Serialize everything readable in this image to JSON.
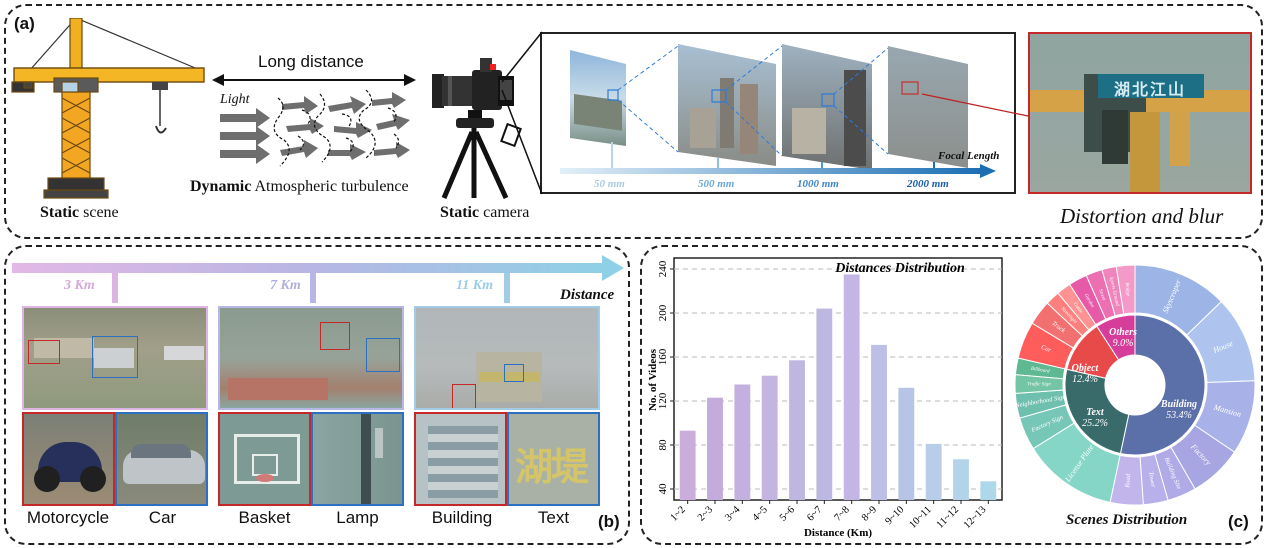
{
  "panel_a": {
    "tag": "(a)",
    "static_scene_bold": "Static",
    "static_scene_rest": " scene",
    "long_distance": "Long distance",
    "light": "Light",
    "turbulence_bold": "Dynamic",
    "turbulence_rest": " Atmospheric turbulence",
    "static_camera_bold": "Static",
    "static_camera_rest": " camera",
    "focal_length": "Focal Length",
    "focal_values": [
      "50 mm",
      "500 mm",
      "1000 mm",
      "2000 mm"
    ],
    "distortion": "Distortion and blur",
    "sign_text": "湖北江山"
  },
  "panel_b": {
    "tag": "(b)",
    "distance_label": "Distance",
    "km_labels": [
      "3 Km",
      "7 Km",
      "11 Km"
    ],
    "object_labels": [
      "Motorcycle",
      "Car",
      "Basket",
      "Lamp",
      "Building",
      "Text"
    ],
    "sign_text": "湖堤"
  },
  "panel_c": {
    "tag": "(c)",
    "scenes_title": "Scenes Distribution",
    "sunburst_inner": [
      {
        "label": "Building",
        "value": "53.4%",
        "color": "#5b6fa8"
      },
      {
        "label": "Text",
        "value": "25.2%",
        "color": "#3a6b6b"
      },
      {
        "label": "Object",
        "value": "12.4%",
        "color": "#e84a4a"
      },
      {
        "label": "Others",
        "value": "9.0%",
        "color": "#d63d9a"
      }
    ],
    "sunburst_outer": [
      {
        "label": "Skyscraper",
        "color": "#9db5e6"
      },
      {
        "label": "House",
        "color": "#aec4ef"
      },
      {
        "label": "Mansion",
        "color": "#a8b2e8"
      },
      {
        "label": "Factory",
        "color": "#a7a6e3"
      },
      {
        "label": "Building Site",
        "color": "#b0aae6"
      },
      {
        "label": "Tower",
        "color": "#b8b0ea"
      },
      {
        "label": "Road",
        "color": "#c1b5ec"
      },
      {
        "label": "License Plate",
        "color": "#86d6c8"
      },
      {
        "label": "Factory Sign",
        "color": "#77c7b8"
      },
      {
        "label": "Neighborhood Sign",
        "color": "#6fbfae"
      },
      {
        "label": "Traffic Sign",
        "color": "#74c4a6"
      },
      {
        "label": "Billboard",
        "color": "#5eb892"
      },
      {
        "label": "Car",
        "color": "#ff5c5c"
      },
      {
        "label": "Truck",
        "color": "#f27070"
      },
      {
        "label": "Streetlight",
        "color": "#ff7e7e"
      },
      {
        "label": "Cattle",
        "color": "#ff9393"
      },
      {
        "label": "Garden",
        "color": "#e75aa8"
      },
      {
        "label": "Street",
        "color": "#ec6fb2"
      },
      {
        "label": "Sports Ground",
        "color": "#f084bd"
      },
      {
        "label": "Bridge",
        "color": "#f49ac8"
      }
    ]
  },
  "chart_data": {
    "type": "bar",
    "title": "Distances Distribution",
    "xlabel": "Distance (Km)",
    "ylabel": "No. of Videos",
    "categories": [
      "1~2",
      "2~3",
      "3~4",
      "4~5",
      "5~6",
      "6~7",
      "7~8",
      "8~9",
      "9~10",
      "10~11",
      "11~12",
      "12~13"
    ],
    "values": [
      93,
      123,
      135,
      143,
      157,
      204,
      235,
      171,
      132,
      81,
      67,
      47
    ],
    "ylim": [
      30,
      250
    ],
    "yticks": [
      40,
      80,
      120,
      160,
      200,
      240
    ],
    "grid": "dashed horizontal",
    "colors": [
      "#c9aedc",
      "#c3acdc",
      "#c4b0de",
      "#c3b5e0",
      "#bfb7df",
      "#bcb8e2",
      "#c3b6e4",
      "#bdbfe6",
      "#b7c4e6",
      "#b8cde8",
      "#b2d3ea",
      "#add8ea"
    ]
  }
}
